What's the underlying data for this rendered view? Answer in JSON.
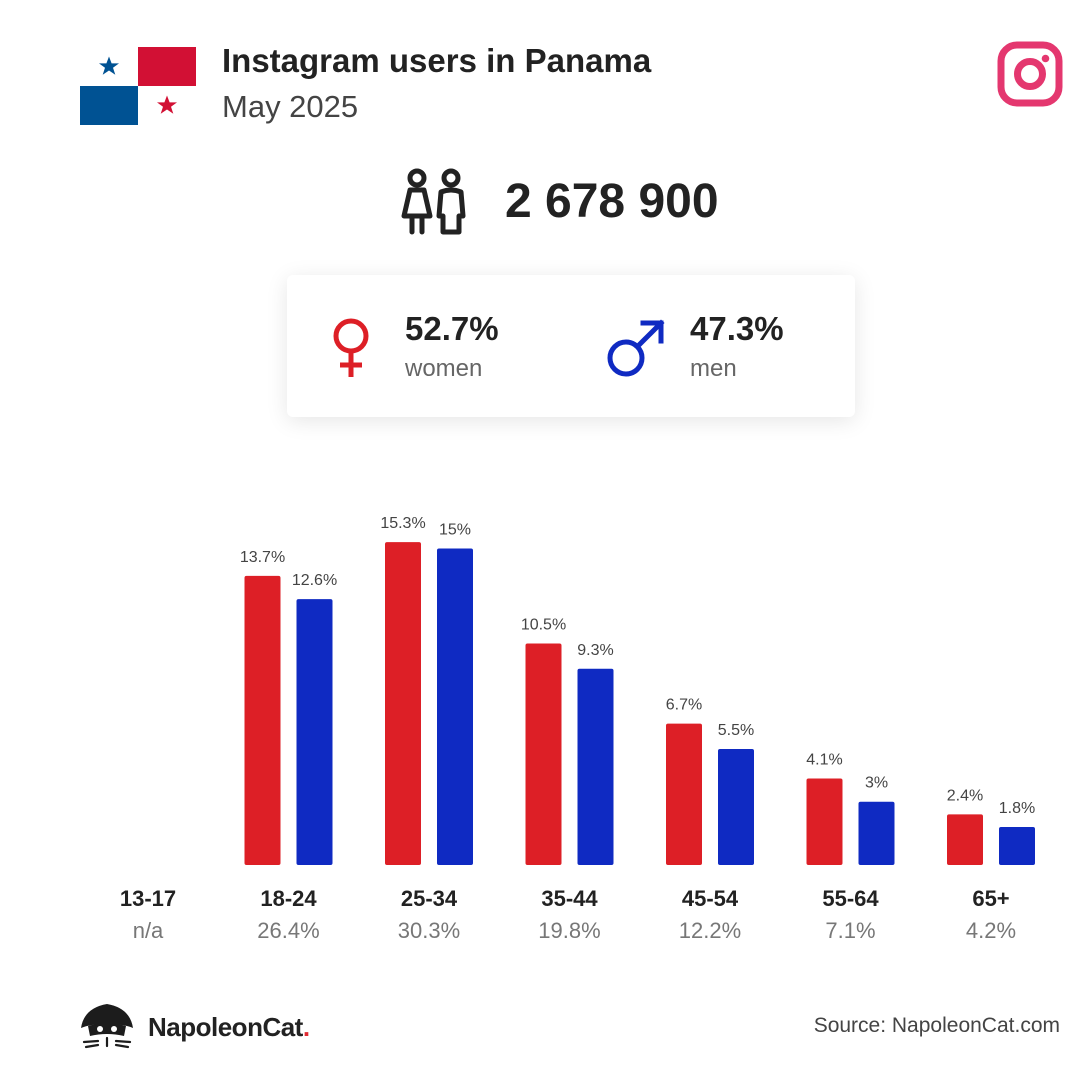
{
  "header": {
    "title": "Instagram users in Panama",
    "subtitle": "May 2025"
  },
  "colors": {
    "women": "#dd1f26",
    "men": "#0f2ac2",
    "instagram": "#e4376f",
    "flag_red": "#d21034",
    "flag_blue": "#005293"
  },
  "icons": {
    "flag": "panama-flag-icon",
    "brand": "instagram-icon",
    "total": "people-icon",
    "women": "female-symbol-icon",
    "men": "male-symbol-icon",
    "footer": "napoleoncat-logo-icon"
  },
  "total": {
    "value": "2 678 900"
  },
  "gender": {
    "women": {
      "pct": "52.7%",
      "label": "women"
    },
    "men": {
      "pct": "47.3%",
      "label": "men"
    }
  },
  "chart_data": {
    "type": "bar",
    "categories": [
      "13-17",
      "18-24",
      "25-34",
      "35-44",
      "45-54",
      "55-64",
      "65+"
    ],
    "totals": [
      "n/a",
      "26.4%",
      "30.3%",
      "19.8%",
      "12.2%",
      "7.1%",
      "4.2%"
    ],
    "series": [
      {
        "name": "women",
        "values": [
          null,
          13.7,
          15.3,
          10.5,
          6.7,
          4.1,
          2.4
        ],
        "labels": [
          "",
          "13.7%",
          "15.3%",
          "10.5%",
          "6.7%",
          "4.1%",
          "2.4%"
        ]
      },
      {
        "name": "men",
        "values": [
          null,
          12.6,
          15.0,
          9.3,
          5.5,
          3.0,
          1.8
        ],
        "labels": [
          "",
          "12.6%",
          "15%",
          "9.3%",
          "5.5%",
          "3%",
          "1.8%"
        ]
      }
    ],
    "grid": false,
    "legend": "none"
  },
  "footer": {
    "brand_name": "NapoleonCat",
    "brand_dot": ".",
    "source": "Source: NapoleonCat.com"
  }
}
